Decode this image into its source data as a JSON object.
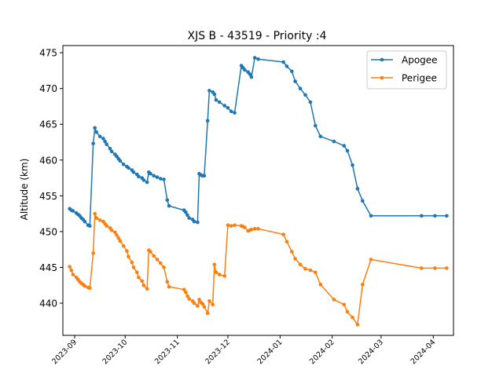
{
  "chart_data": {
    "type": "line",
    "title": "XJS B - 43519 - Priority :4",
    "xlabel": "",
    "ylabel": "Altitude (km)",
    "x_is_date": true,
    "xlim": [
      "2023-08-25",
      "2024-04-13"
    ],
    "ylim": [
      435.5,
      476
    ],
    "x_ticks": [
      "2023-09-01",
      "2023-10-01",
      "2023-11-01",
      "2023-12-01",
      "2024-01-01",
      "2024-02-01",
      "2024-03-01",
      "2024-04-01"
    ],
    "x_tick_labels": [
      "2023-09",
      "2023-10",
      "2023-11",
      "2023-12",
      "2024-01",
      "2024-02",
      "2024-03",
      "2024-04"
    ],
    "y_ticks": [
      440,
      445,
      450,
      455,
      460,
      465,
      470,
      475
    ],
    "y_tick_labels": [
      "440",
      "445",
      "450",
      "455",
      "460",
      "465",
      "470",
      "475"
    ],
    "grid": false,
    "legend_position": "top-right",
    "series": [
      {
        "name": "Apogee",
        "color": "#1f77b4",
        "x": [
          "2023-08-29",
          "2023-08-30",
          "2023-08-31",
          "2023-09-02",
          "2023-09-03",
          "2023-09-04",
          "2023-09-05",
          "2023-09-06",
          "2023-09-07",
          "2023-09-09",
          "2023-09-10",
          "2023-09-12",
          "2023-09-13",
          "2023-09-14",
          "2023-09-16",
          "2023-09-18",
          "2023-09-19",
          "2023-09-20",
          "2023-09-22",
          "2023-09-23",
          "2023-09-25",
          "2023-09-26",
          "2023-09-27",
          "2023-09-28",
          "2023-09-30",
          "2023-10-02",
          "2023-10-03",
          "2023-10-05",
          "2023-10-06",
          "2023-10-08",
          "2023-10-09",
          "2023-10-11",
          "2023-10-12",
          "2023-10-14",
          "2023-10-15",
          "2023-10-16",
          "2023-10-18",
          "2023-10-20",
          "2023-10-22",
          "2023-10-24",
          "2023-10-26",
          "2023-10-27",
          "2023-11-05",
          "2023-11-06",
          "2023-11-07",
          "2023-11-08",
          "2023-11-10",
          "2023-11-11",
          "2023-11-13",
          "2023-11-14",
          "2023-11-15",
          "2023-11-16",
          "2023-11-17",
          "2023-11-19",
          "2023-11-20",
          "2023-11-22",
          "2023-11-23",
          "2023-11-24",
          "2023-11-26",
          "2023-11-29",
          "2023-12-01",
          "2023-12-03",
          "2023-12-05",
          "2023-12-09",
          "2023-12-10",
          "2023-12-11",
          "2023-12-13",
          "2023-12-14",
          "2023-12-15",
          "2023-12-17",
          "2023-12-19",
          "2024-01-03",
          "2024-01-05",
          "2024-01-08",
          "2024-01-10",
          "2024-01-13",
          "2024-01-16",
          "2024-01-19",
          "2024-01-22",
          "2024-01-25",
          "2024-02-02",
          "2024-02-08",
          "2024-02-10",
          "2024-02-13",
          "2024-02-16",
          "2024-02-19",
          "2024-02-24",
          "2024-03-25",
          "2024-04-02",
          "2024-04-09"
        ],
        "values": [
          453.2,
          453.0,
          452.9,
          452.6,
          452.4,
          452.2,
          451.9,
          451.7,
          451.4,
          450.9,
          450.8,
          462.3,
          464.5,
          463.9,
          463.3,
          463.0,
          462.6,
          462.2,
          461.6,
          461.2,
          460.8,
          460.5,
          460.2,
          459.9,
          459.4,
          459.1,
          458.9,
          458.6,
          458.3,
          458.0,
          457.7,
          457.5,
          457.2,
          456.9,
          458.3,
          458.1,
          457.8,
          457.6,
          457.4,
          457.3,
          454.4,
          453.6,
          453.0,
          452.7,
          452.3,
          451.9,
          451.7,
          451.4,
          451.3,
          458.1,
          457.9,
          457.8,
          457.8,
          465.5,
          469.7,
          469.5,
          469.2,
          468.4,
          468.1,
          467.6,
          467.3,
          466.8,
          466.6,
          473.2,
          472.9,
          472.6,
          472.3,
          472.0,
          471.6,
          474.3,
          474.1,
          473.7,
          473.1,
          472.4,
          471.0,
          470.0,
          469.1,
          468.1,
          464.8,
          463.3,
          462.6,
          462.0,
          461.3,
          459.3,
          456.0,
          454.3,
          452.2,
          452.2,
          452.2,
          452.2
        ],
        "values_note_unused": []
      },
      {
        "name": "Perigee",
        "color": "#ff7f0e",
        "x": [
          "2023-08-29",
          "2023-08-30",
          "2023-08-31",
          "2023-09-02",
          "2023-09-03",
          "2023-09-04",
          "2023-09-05",
          "2023-09-06",
          "2023-09-07",
          "2023-09-09",
          "2023-09-10",
          "2023-09-12",
          "2023-09-13",
          "2023-09-14",
          "2023-09-16",
          "2023-09-18",
          "2023-09-19",
          "2023-09-20",
          "2023-09-22",
          "2023-09-23",
          "2023-09-25",
          "2023-09-26",
          "2023-09-27",
          "2023-09-28",
          "2023-09-30",
          "2023-10-02",
          "2023-10-03",
          "2023-10-05",
          "2023-10-06",
          "2023-10-08",
          "2023-10-09",
          "2023-10-11",
          "2023-10-12",
          "2023-10-14",
          "2023-10-15",
          "2023-10-16",
          "2023-10-18",
          "2023-10-20",
          "2023-10-22",
          "2023-10-24",
          "2023-10-26",
          "2023-10-27",
          "2023-11-05",
          "2023-11-06",
          "2023-11-07",
          "2023-11-08",
          "2023-11-10",
          "2023-11-11",
          "2023-11-13",
          "2023-11-14",
          "2023-11-15",
          "2023-11-16",
          "2023-11-17",
          "2023-11-19",
          "2023-11-20",
          "2023-11-22",
          "2023-11-23",
          "2023-11-24",
          "2023-11-26",
          "2023-11-29",
          "2023-12-01",
          "2023-12-03",
          "2023-12-05",
          "2023-12-09",
          "2023-12-10",
          "2023-12-11",
          "2023-12-13",
          "2023-12-14",
          "2023-12-15",
          "2023-12-17",
          "2023-12-19",
          "2024-01-03",
          "2024-01-05",
          "2024-01-08",
          "2024-01-10",
          "2024-01-13",
          "2024-01-16",
          "2024-01-19",
          "2024-01-22",
          "2024-01-25",
          "2024-02-02",
          "2024-02-08",
          "2024-02-10",
          "2024-02-13",
          "2024-02-16",
          "2024-02-19",
          "2024-02-24",
          "2024-03-25",
          "2024-04-02",
          "2024-04-09"
        ],
        "values": [
          445.1,
          444.6,
          444.0,
          443.6,
          443.3,
          443.0,
          442.8,
          442.6,
          442.4,
          442.2,
          442.1,
          447.0,
          452.5,
          451.9,
          451.6,
          451.4,
          451.1,
          450.8,
          450.5,
          450.2,
          449.9,
          449.5,
          449.1,
          448.7,
          448.0,
          447.3,
          446.5,
          445.7,
          445.0,
          444.3,
          443.6,
          443.1,
          442.5,
          442.0,
          447.4,
          447.2,
          446.6,
          446.1,
          445.6,
          445.0,
          443.0,
          442.3,
          441.9,
          441.5,
          441.0,
          440.6,
          440.3,
          440.0,
          439.6,
          440.5,
          440.1,
          439.9,
          439.5,
          438.6,
          440.3,
          439.8,
          445.4,
          444.3,
          444.0,
          443.8,
          450.9,
          450.8,
          450.9,
          450.8,
          450.7,
          450.6,
          450.1,
          450.2,
          450.3,
          450.4,
          450.4,
          449.6,
          448.6,
          447.2,
          446.2,
          445.4,
          444.8,
          444.6,
          444.3,
          442.6,
          440.5,
          439.8,
          438.8,
          438.0,
          437.0,
          442.6,
          446.1,
          444.9,
          444.9,
          444.9
        ],
        "values_note_unused": []
      }
    ]
  }
}
